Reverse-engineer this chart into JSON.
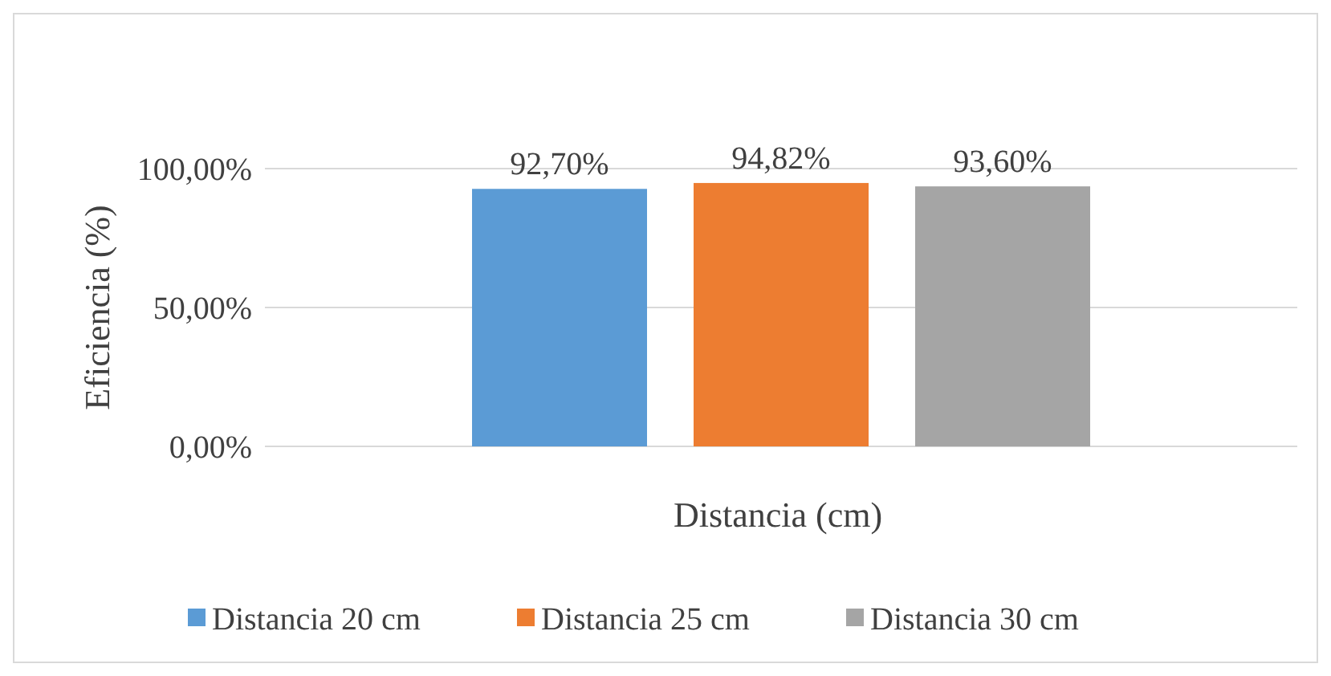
{
  "chart_data": {
    "type": "bar",
    "xlabel": "Distancia (cm)",
    "ylabel": "Eficiencia (%)",
    "categories": [
      null
    ],
    "series": [
      {
        "name": "Distancia 20 cm",
        "color": "#5b9bd5",
        "values": [
          92.7
        ],
        "value_labels": [
          "92,70%"
        ]
      },
      {
        "name": "Distancia 25 cm",
        "color": "#ed7d31",
        "values": [
          94.82
        ],
        "value_labels": [
          "94,82%"
        ]
      },
      {
        "name": "Distancia 30 cm",
        "color": "#a5a5a5",
        "values": [
          93.6
        ],
        "value_labels": [
          "93,60%"
        ]
      }
    ],
    "ylim": [
      0,
      100
    ],
    "yticks": [
      {
        "value": 0,
        "label": "0,00%"
      },
      {
        "value": 50,
        "label": "50,00%"
      },
      {
        "value": 100,
        "label": "100,00%"
      }
    ],
    "grid": "y",
    "legend": "bottom"
  }
}
